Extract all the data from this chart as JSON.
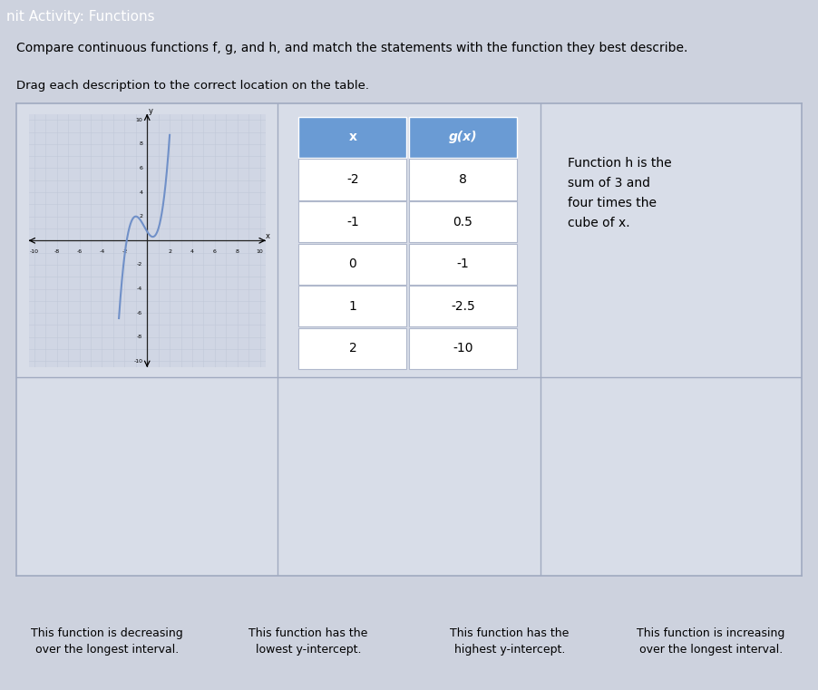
{
  "title_bar_text": "nit Activity: Functions",
  "title_bar_color": "#8baad4",
  "heading": "Compare continuous functions f, g, and h, and match the statements with the function they best describe.",
  "subheading": "Drag each description to the correct location on the table.",
  "bg_color": "#cdd2de",
  "main_box_bg": "#d8dde8",
  "main_box_border": "#a0aac0",
  "cell_bg": "#ffffff",
  "table_header_color": "#6a9bd4",
  "table_header_text": "#ffffff",
  "table_x_values": [
    -2,
    -1,
    0,
    1,
    2
  ],
  "table_gx_values": [
    "8",
    "0.5",
    "-1",
    "-2.5",
    "-10"
  ],
  "col1_header": "x",
  "col2_header": "g(x)",
  "h_description": [
    "Function h is the",
    "sum of 3 and",
    "four times the",
    "cube of x."
  ],
  "bottom_labels": [
    [
      "This function is decreasing",
      "over the longest interval."
    ],
    [
      "This function has the",
      "lowest y-intercept."
    ],
    [
      "This function has the",
      "highest y-intercept."
    ],
    [
      "This function is increasing",
      "over the longest interval."
    ]
  ],
  "bottom_label_bg": "#dce1eb",
  "bottom_label_border": "#a0aac0",
  "graph_line_color": "#7090c8",
  "axis_color": "#222222",
  "grid_color": "#c0c8d8",
  "graph_panel_bg": "#d0d6e4",
  "graph_xlim": [
    -10.5,
    10.5
  ],
  "graph_ylim": [
    -10.5,
    10.5
  ]
}
